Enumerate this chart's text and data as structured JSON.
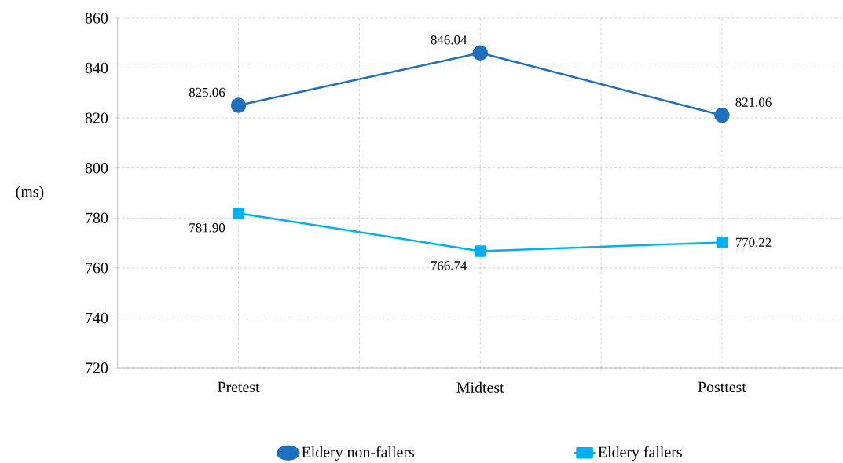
{
  "chart_data": {
    "type": "line",
    "categories": [
      "Pretest",
      "Midtest",
      "Posttest"
    ],
    "ylabel": "(ms)",
    "series": [
      {
        "name": "Eldery non-fallers",
        "color": "#1f6fbf",
        "marker": "circle",
        "values": [
          825.06,
          846.04,
          821.06
        ],
        "value_labels": [
          "825.06",
          "846.04",
          "821.06"
        ]
      },
      {
        "name": "Eldery fallers",
        "color": "#00b0f0",
        "marker": "square",
        "values": [
          781.9,
          766.74,
          770.22
        ],
        "value_labels": [
          "781.90",
          "766.74",
          "770.22"
        ]
      }
    ],
    "ylim": [
      720,
      860
    ],
    "yticks": [
      720,
      740,
      760,
      780,
      800,
      820,
      840,
      860
    ],
    "grid": true,
    "legend": "bottom",
    "line_style": "solid"
  }
}
